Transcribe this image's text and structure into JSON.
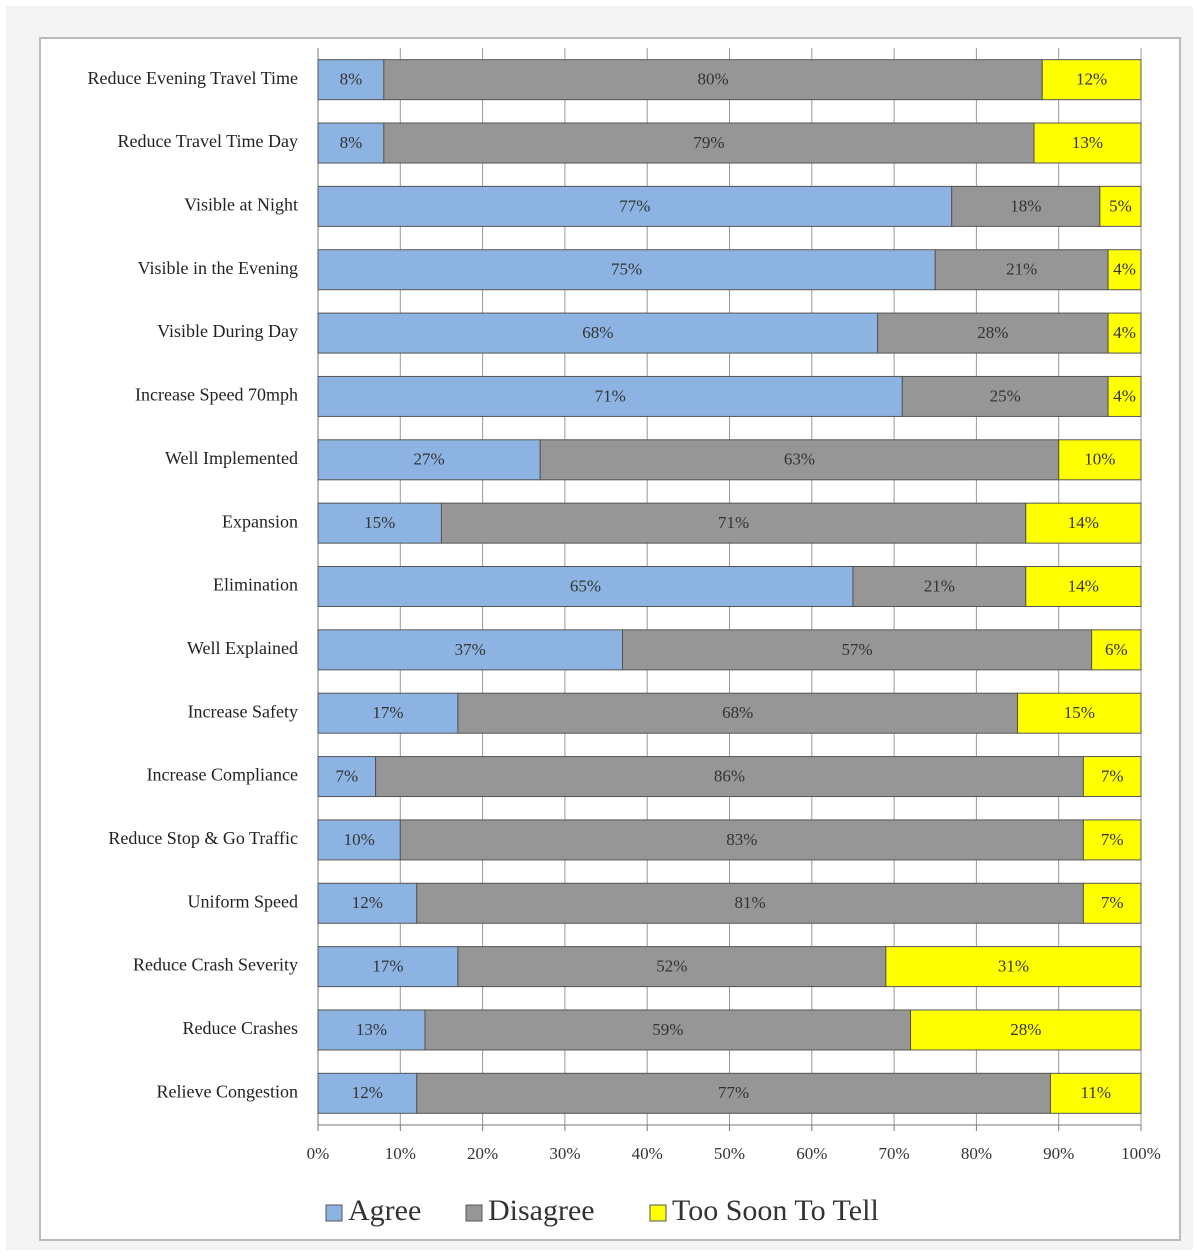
{
  "chart_data": {
    "type": "stacked-barh",
    "categories": [
      "Reduce Evening Travel Time",
      "Reduce Travel Time Day",
      "Visible at Night",
      "Visible in the Evening",
      "Visible During Day",
      "Increase Speed 70mph",
      "Well Implemented",
      "Expansion",
      "Elimination",
      "Well Explained",
      "Increase Safety",
      "Increase Compliance",
      "Reduce Stop & Go Traffic",
      "Uniform Speed",
      "Reduce Crash Severity",
      "Reduce Crashes",
      "Relieve Congestion"
    ],
    "series": [
      {
        "name": "Agree",
        "color": "#8db3e2",
        "values": [
          8,
          8,
          77,
          75,
          68,
          71,
          27,
          15,
          65,
          37,
          17,
          7,
          10,
          12,
          17,
          13,
          12
        ],
        "value_labels": [
          "8%",
          "8%",
          "77%",
          "75%",
          "68%",
          "71%",
          "27%",
          "15%",
          "65%",
          "37%",
          "17%",
          "7%",
          "10%",
          "12%",
          "17%",
          "13%",
          "12%"
        ]
      },
      {
        "name": "Disagree",
        "color": "#969696",
        "values": [
          80,
          79,
          18,
          21,
          28,
          25,
          63,
          71,
          21,
          57,
          68,
          86,
          83,
          81,
          52,
          59,
          77
        ],
        "value_labels": [
          "80%",
          "79%",
          "18%",
          "21%",
          "28%",
          "25%",
          "63%",
          "71%",
          "21%",
          "57%",
          "68%",
          "86%",
          "83%",
          "81%",
          "52%",
          "59%",
          "77%"
        ]
      },
      {
        "name": "Too Soon To Tell",
        "color": "#ffff00",
        "values": [
          12,
          13,
          5,
          4,
          4,
          4,
          10,
          14,
          14,
          6,
          15,
          7,
          7,
          7,
          31,
          28,
          11
        ],
        "value_labels": [
          "12%",
          "13%",
          "5%",
          "4%",
          "4%",
          "4%",
          "10%",
          "14%",
          "14%",
          "6%",
          "15%",
          "7%",
          "7%",
          "7%",
          "31%",
          "28%",
          "11%"
        ]
      }
    ],
    "xlim": [
      0,
      100
    ],
    "xticks": [
      {
        "value": 0,
        "label": "0%"
      },
      {
        "value": 10,
        "label": "10%"
      },
      {
        "value": 20,
        "label": "20%"
      },
      {
        "value": 30,
        "label": "30%"
      },
      {
        "value": 40,
        "label": "40%"
      },
      {
        "value": 50,
        "label": "50%"
      },
      {
        "value": 60,
        "label": "60%"
      },
      {
        "value": 70,
        "label": "70%"
      },
      {
        "value": 80,
        "label": "80%"
      },
      {
        "value": 90,
        "label": "90%"
      },
      {
        "value": 100,
        "label": "100%"
      }
    ],
    "grid": true,
    "legend": "bottom"
  }
}
